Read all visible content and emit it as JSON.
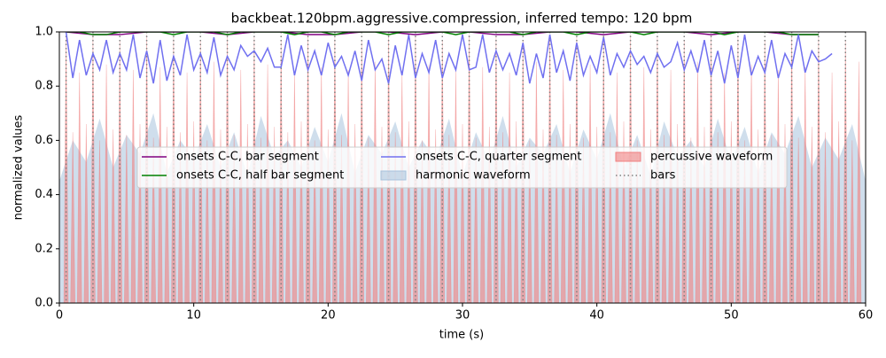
{
  "chart_data": {
    "type": "line",
    "title": "backbeat.120bpm.aggressive.compression, inferred tempo: 120 bpm",
    "xlabel": "time (s)",
    "ylabel": "normalized values",
    "xlim": [
      0,
      60
    ],
    "ylim": [
      0,
      1
    ],
    "xticks": [
      0,
      10,
      20,
      30,
      40,
      50,
      60
    ],
    "yticks": [
      {
        "value": 0,
        "label": "0.0"
      },
      0.2,
      0.4,
      0.6,
      0.8,
      {
        "value": 1,
        "label": "1.0"
      }
    ],
    "legend": "center",
    "series": [
      {
        "name": "onsets C-C, bar segment",
        "color": "#800080",
        "style": "line",
        "x": [
          0.5,
          2.5,
          4.5,
          6.5,
          8.5,
          10.5,
          12.5,
          14.5,
          16.5,
          18.5,
          20.5,
          22.5,
          24.5,
          26.5,
          28.5,
          30.5,
          32.5,
          34.5,
          36.5,
          38.5,
          40.5,
          42.5,
          44.5,
          46.5,
          48.5,
          50.5,
          52.5,
          54.5,
          56.5
        ],
        "values": [
          1.0,
          0.99,
          0.99,
          1.0,
          1.0,
          1.0,
          0.99,
          1.0,
          1.0,
          0.99,
          0.99,
          1.0,
          1.0,
          0.99,
          1.0,
          1.0,
          0.99,
          0.99,
          1.0,
          1.0,
          0.99,
          1.0,
          1.0,
          1.0,
          0.99,
          1.0,
          1.0,
          0.99,
          0.99
        ]
      },
      {
        "name": "onsets C-C, half bar segment",
        "color": "#008000",
        "style": "line",
        "x": [
          0.5,
          1.5,
          2.5,
          3.5,
          4.5,
          5.5,
          6.5,
          7.5,
          8.5,
          9.5,
          10.5,
          11.5,
          12.5,
          13.5,
          14.5,
          15.5,
          16.5,
          17.5,
          18.5,
          19.5,
          20.5,
          21.5,
          22.5,
          23.5,
          24.5,
          25.5,
          26.5,
          27.5,
          28.5,
          29.5,
          30.5,
          31.5,
          32.5,
          33.5,
          34.5,
          35.5,
          36.5,
          37.5,
          38.5,
          39.5,
          40.5,
          41.5,
          42.5,
          43.5,
          44.5,
          45.5,
          46.5,
          47.5,
          48.5,
          49.5,
          50.5,
          51.5,
          52.5,
          53.5,
          54.5,
          55.5,
          56.5
        ],
        "values": [
          1.0,
          1.0,
          0.99,
          0.99,
          1.0,
          1.0,
          1.0,
          1.0,
          0.99,
          1.0,
          1.0,
          1.0,
          0.99,
          1.0,
          1.0,
          1.0,
          1.0,
          0.99,
          1.0,
          1.0,
          0.99,
          1.0,
          1.0,
          1.0,
          0.99,
          1.0,
          1.0,
          1.0,
          1.0,
          0.99,
          1.0,
          1.0,
          1.0,
          1.0,
          0.99,
          1.0,
          1.0,
          1.0,
          0.99,
          1.0,
          1.0,
          1.0,
          1.0,
          0.99,
          1.0,
          1.0,
          1.0,
          1.0,
          1.0,
          0.99,
          1.0,
          1.0,
          1.0,
          1.0,
          0.99,
          0.99,
          0.99
        ]
      },
      {
        "name": "onsets C-C, quarter segment",
        "color": "#7070f0",
        "style": "line",
        "x": [
          0.5,
          1,
          1.5,
          2,
          2.5,
          3,
          3.5,
          4,
          4.5,
          5,
          5.5,
          6,
          6.5,
          7,
          7.5,
          8,
          8.5,
          9,
          9.5,
          10,
          10.5,
          11,
          11.5,
          12,
          12.5,
          13,
          13.5,
          14,
          14.5,
          15,
          15.5,
          16,
          16.5,
          17,
          17.5,
          18,
          18.5,
          19,
          19.5,
          20,
          20.5,
          21,
          21.5,
          22,
          22.5,
          23,
          23.5,
          24,
          24.5,
          25,
          25.5,
          26,
          26.5,
          27,
          27.5,
          28,
          28.5,
          29,
          29.5,
          30,
          30.5,
          31,
          31.5,
          32,
          32.5,
          33,
          33.5,
          34,
          34.5,
          35,
          35.5,
          36,
          36.5,
          37,
          37.5,
          38,
          38.5,
          39,
          39.5,
          40,
          40.5,
          41,
          41.5,
          42,
          42.5,
          43,
          43.5,
          44,
          44.5,
          45,
          45.5,
          46,
          46.5,
          47,
          47.5,
          48,
          48.5,
          49,
          49.5,
          50,
          50.5,
          51,
          51.5,
          52,
          52.5,
          53,
          53.5,
          54,
          54.5,
          55,
          55.5,
          56,
          56.5,
          57,
          57.5
        ],
        "values": [
          1.0,
          0.83,
          0.97,
          0.84,
          0.92,
          0.86,
          0.97,
          0.85,
          0.92,
          0.86,
          0.99,
          0.83,
          0.93,
          0.81,
          0.97,
          0.82,
          0.91,
          0.84,
          0.99,
          0.86,
          0.92,
          0.85,
          0.98,
          0.84,
          0.91,
          0.86,
          0.95,
          0.91,
          0.93,
          0.89,
          0.94,
          0.87,
          0.87,
          0.99,
          0.84,
          0.95,
          0.86,
          0.93,
          0.84,
          0.96,
          0.87,
          0.91,
          0.84,
          0.93,
          0.82,
          0.97,
          0.86,
          0.9,
          0.81,
          0.95,
          0.84,
          0.99,
          0.83,
          0.92,
          0.85,
          0.97,
          0.83,
          0.92,
          0.86,
          0.99,
          0.86,
          0.87,
          0.99,
          0.85,
          0.93,
          0.86,
          0.92,
          0.84,
          0.96,
          0.81,
          0.92,
          0.83,
          0.99,
          0.85,
          0.93,
          0.82,
          0.96,
          0.84,
          0.91,
          0.85,
          0.98,
          0.84,
          0.92,
          0.87,
          0.93,
          0.88,
          0.91,
          0.85,
          0.92,
          0.87,
          0.89,
          0.96,
          0.86,
          0.93,
          0.85,
          0.97,
          0.84,
          0.93,
          0.81,
          0.95,
          0.83,
          0.99,
          0.84,
          0.91,
          0.85,
          0.97,
          0.83,
          0.92,
          0.87,
          0.99,
          0.85,
          0.93,
          0.89,
          0.9,
          0.92
        ]
      },
      {
        "name": "harmonic waveform",
        "color": "#a8c2dc",
        "style": "area",
        "x": [
          0,
          1,
          2,
          3,
          4,
          5,
          6,
          7,
          8,
          9,
          10,
          11,
          12,
          13,
          14,
          15,
          16,
          17,
          18,
          19,
          20,
          21,
          22,
          23,
          24,
          25,
          26,
          27,
          28,
          29,
          30,
          31,
          32,
          33,
          34,
          35,
          36,
          37,
          38,
          39,
          40,
          41,
          42,
          43,
          44,
          45,
          46,
          47,
          48,
          49,
          50,
          51,
          52,
          53,
          54,
          55,
          56,
          57,
          58,
          59,
          60
        ],
        "values": [
          0.45,
          0.6,
          0.52,
          0.68,
          0.5,
          0.62,
          0.55,
          0.7,
          0.48,
          0.6,
          0.53,
          0.66,
          0.5,
          0.63,
          0.47,
          0.69,
          0.54,
          0.6,
          0.5,
          0.65,
          0.52,
          0.7,
          0.48,
          0.62,
          0.55,
          0.67,
          0.5,
          0.6,
          0.53,
          0.68,
          0.47,
          0.63,
          0.52,
          0.69,
          0.5,
          0.61,
          0.55,
          0.66,
          0.48,
          0.64,
          0.53,
          0.7,
          0.5,
          0.62,
          0.47,
          0.67,
          0.54,
          0.6,
          0.5,
          0.68,
          0.52,
          0.65,
          0.48,
          0.63,
          0.55,
          0.69,
          0.5,
          0.61,
          0.53,
          0.66,
          0.45
        ]
      },
      {
        "name": "percussive waveform",
        "color": "#f08080",
        "style": "spikes",
        "x": [
          0.5,
          1,
          1.5,
          2,
          2.5,
          3,
          3.5,
          4,
          4.5,
          5,
          5.5,
          6,
          6.5,
          7,
          7.5,
          8,
          8.5,
          9,
          9.5,
          10,
          10.5,
          11,
          11.5,
          12,
          12.5,
          13,
          13.5,
          14,
          14.5,
          15,
          15.5,
          16,
          16.5,
          17,
          17.5,
          18,
          18.5,
          19,
          19.5,
          20,
          20.5,
          21,
          21.5,
          22,
          22.5,
          23,
          23.5,
          24,
          24.5,
          25,
          25.5,
          26,
          26.5,
          27,
          27.5,
          28,
          28.5,
          29,
          29.5,
          30,
          30.5,
          31,
          31.5,
          32,
          32.5,
          33,
          33.5,
          34,
          34.5,
          35,
          35.5,
          36,
          36.5,
          37,
          37.5,
          38,
          38.5,
          39,
          39.5,
          40,
          40.5,
          41,
          41.5,
          42,
          42.5,
          43,
          43.5,
          44,
          44.5,
          45,
          45.5,
          46,
          46.5,
          47,
          47.5,
          48,
          48.5,
          49,
          49.5,
          50,
          50.5,
          51,
          51.5,
          52,
          52.5,
          53,
          53.5,
          54,
          54.5,
          55,
          55.5,
          56,
          56.5,
          57,
          57.5,
          58,
          58.5,
          59,
          59.5
        ],
        "values": [
          0.98,
          0.63,
          0.85,
          0.66,
          0.99,
          0.6,
          0.88,
          0.64,
          0.97,
          0.62,
          0.86,
          0.66,
          0.99,
          0.61,
          0.87,
          0.65,
          0.98,
          0.63,
          0.85,
          0.67,
          0.97,
          0.6,
          0.89,
          0.64,
          0.99,
          0.62,
          0.86,
          0.66,
          0.98,
          0.61,
          0.88,
          0.65,
          0.97,
          0.63,
          0.85,
          0.67,
          0.99,
          0.6,
          0.87,
          0.64,
          0.98,
          0.62,
          0.86,
          0.66,
          0.97,
          0.61,
          0.89,
          0.65,
          0.99,
          0.63,
          0.85,
          0.67,
          0.98,
          0.6,
          0.88,
          0.64,
          0.97,
          0.62,
          0.86,
          0.66,
          0.99,
          0.61,
          0.87,
          0.65,
          0.98,
          0.63,
          0.85,
          0.67,
          0.97,
          0.6,
          0.89,
          0.64,
          0.99,
          0.62,
          0.86,
          0.66,
          0.98,
          0.61,
          0.88,
          0.65,
          0.97,
          0.63,
          0.85,
          0.67,
          0.99,
          0.6,
          0.87,
          0.64,
          0.98,
          0.62,
          0.86,
          0.66,
          0.97,
          0.61,
          0.89,
          0.65,
          0.99,
          0.63,
          0.85,
          0.67,
          0.98,
          0.6,
          0.88,
          0.64,
          0.97,
          0.62,
          0.86,
          0.66,
          0.99,
          0.61,
          0.87,
          0.65,
          0.98,
          0.63,
          0.85,
          0.67,
          0.97,
          0.6,
          0.89
        ]
      },
      {
        "name": "bars",
        "color": "#808080",
        "style": "vlines",
        "x": [
          0.5,
          2.5,
          4.5,
          6.5,
          8.5,
          10.5,
          12.5,
          14.5,
          16.5,
          18.5,
          20.5,
          22.5,
          24.5,
          26.5,
          28.5,
          30.5,
          32.5,
          34.5,
          36.5,
          38.5,
          40.5,
          42.5,
          44.5,
          46.5,
          48.5,
          50.5,
          52.5,
          54.5,
          56.5,
          58.5
        ]
      }
    ]
  }
}
